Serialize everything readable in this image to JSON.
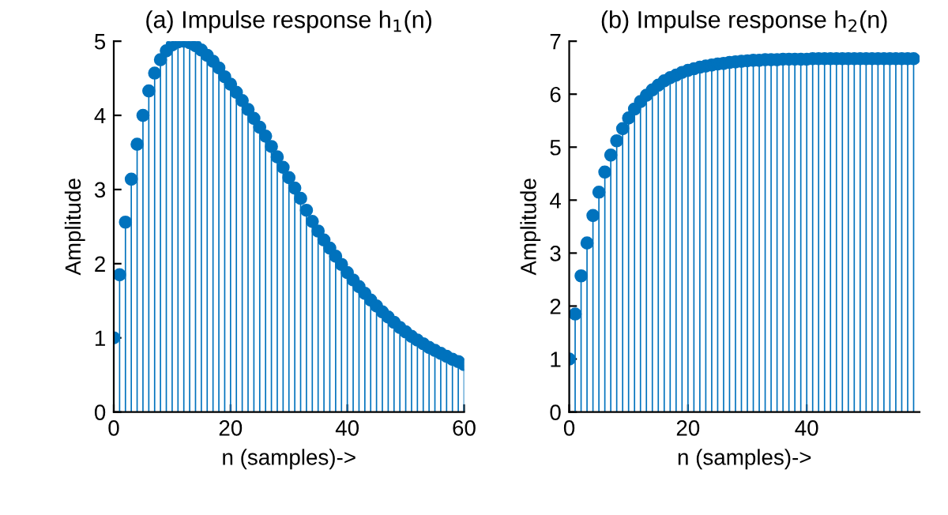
{
  "chart_data": [
    {
      "type": "lollipop",
      "title": "(a) Impulse response h$_{1}$(n)",
      "xlabel": "n (samples)->",
      "ylabel": "Amplitude",
      "x": [
        0,
        1,
        2,
        3,
        4,
        5,
        6,
        7,
        8,
        9,
        10,
        11,
        12,
        13,
        14,
        15,
        16,
        17,
        18,
        19,
        20,
        21,
        22,
        23,
        24,
        25,
        26,
        27,
        28,
        29,
        30,
        31,
        32,
        33,
        34,
        35,
        36,
        37,
        38,
        39,
        40,
        41,
        42,
        43,
        44,
        45,
        46,
        47,
        48,
        49,
        50,
        51,
        52,
        53,
        54,
        55,
        56,
        57,
        58,
        59,
        60
      ],
      "series": [
        {
          "color": "#0072bd",
          "values": [
            1.0,
            1.85,
            2.56,
            3.14,
            3.61,
            4.0,
            4.33,
            4.57,
            4.75,
            4.87,
            4.95,
            4.99,
            5.0,
            4.98,
            4.94,
            4.88,
            4.81,
            4.73,
            4.64,
            4.52,
            4.42,
            4.31,
            4.2,
            4.08,
            3.96,
            3.84,
            3.72,
            3.58,
            3.44,
            3.3,
            3.16,
            3.02,
            2.88,
            2.72,
            2.57,
            2.44,
            2.32,
            2.21,
            2.1,
            1.99,
            1.88,
            1.78,
            1.69,
            1.6,
            1.51,
            1.43,
            1.35,
            1.28,
            1.21,
            1.14,
            1.08,
            1.02,
            0.97,
            0.92,
            0.87,
            0.83,
            0.79,
            0.75,
            0.71,
            0.68,
            0.64
          ]
        }
      ],
      "xlim": [
        0,
        60
      ],
      "xticks": [
        0,
        20,
        40,
        60
      ],
      "ylim": [
        0,
        5
      ],
      "yticks": [
        0,
        1,
        2,
        3,
        4,
        5
      ],
      "marker": "circle",
      "legend": false
    },
    {
      "type": "lollipop",
      "title": "(b) Impulse response h$_{2}$(n)",
      "xlabel": "n (samples)->",
      "ylabel": "Amplitude",
      "x": [
        0,
        1,
        2,
        3,
        4,
        5,
        6,
        7,
        8,
        9,
        10,
        11,
        12,
        13,
        14,
        15,
        16,
        17,
        18,
        19,
        20,
        21,
        22,
        23,
        24,
        25,
        26,
        27,
        28,
        29,
        30,
        31,
        32,
        33,
        34,
        35,
        36,
        37,
        38,
        39,
        40,
        41,
        42,
        43,
        44,
        45,
        46,
        47,
        48,
        49,
        50,
        51,
        52,
        53,
        54,
        55,
        56,
        57,
        58
      ],
      "series": [
        {
          "color": "#0072bd",
          "values": [
            1.0,
            1.85,
            2.57,
            3.19,
            3.71,
            4.15,
            4.53,
            4.85,
            5.12,
            5.35,
            5.55,
            5.72,
            5.86,
            5.98,
            6.08,
            6.17,
            6.25,
            6.31,
            6.36,
            6.41,
            6.45,
            6.48,
            6.51,
            6.53,
            6.55,
            6.57,
            6.58,
            6.6,
            6.61,
            6.62,
            6.63,
            6.64,
            6.64,
            6.65,
            6.65,
            6.65,
            6.66,
            6.66,
            6.66,
            6.66,
            6.66,
            6.67,
            6.67,
            6.67,
            6.67,
            6.67,
            6.67,
            6.67,
            6.67,
            6.67,
            6.67,
            6.67,
            6.67,
            6.67,
            6.67,
            6.67,
            6.67,
            6.67,
            6.67
          ]
        }
      ],
      "xlim": [
        0,
        59
      ],
      "xticks": [
        0,
        20,
        40
      ],
      "ylim": [
        0,
        7
      ],
      "yticks": [
        0,
        1,
        2,
        3,
        4,
        5,
        6,
        7
      ],
      "marker": "circle",
      "legend": false
    }
  ]
}
